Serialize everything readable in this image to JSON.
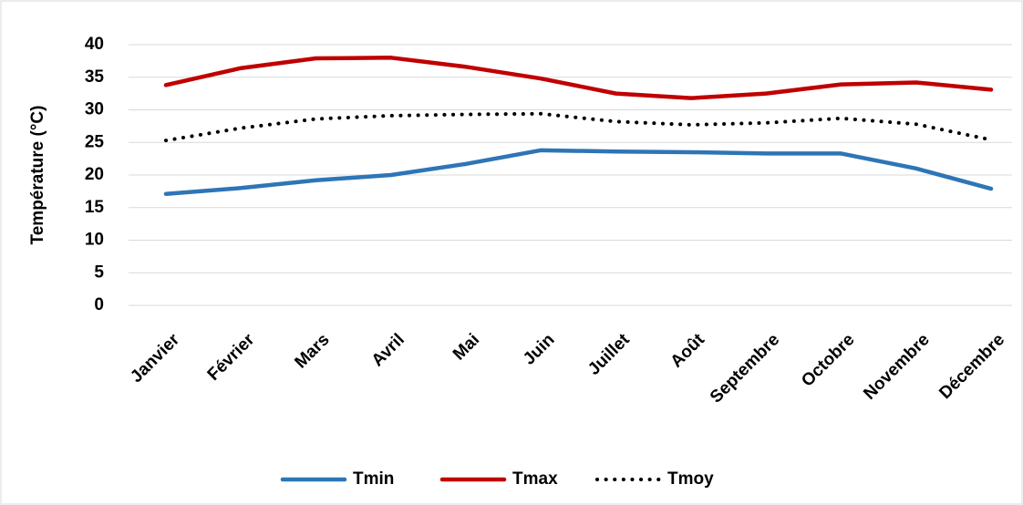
{
  "chart_data": {
    "type": "line",
    "y_label": "Température (°C)",
    "categories": [
      "Janvier",
      "Février",
      "Mars",
      "Avril",
      "Mai",
      "Juin",
      "Juillet",
      "Août",
      "Septembre",
      "Octobre",
      "Novembre",
      "Décembre"
    ],
    "series": [
      {
        "name": "Tmin",
        "color": "#2e75b6",
        "style": "solid",
        "values": [
          17.1,
          18.0,
          19.2,
          20.0,
          21.7,
          23.8,
          23.6,
          23.5,
          23.3,
          23.3,
          21.0,
          17.9
        ]
      },
      {
        "name": "Tmax",
        "color": "#c00000",
        "style": "solid",
        "values": [
          33.8,
          36.4,
          37.9,
          38.0,
          36.6,
          34.8,
          32.5,
          31.8,
          32.5,
          33.9,
          34.2,
          33.1
        ]
      },
      {
        "name": "Tmoy",
        "color": "#000000",
        "style": "dotted",
        "values": [
          25.3,
          27.2,
          28.6,
          29.1,
          29.3,
          29.4,
          28.2,
          27.7,
          28.0,
          28.7,
          27.8,
          25.4
        ]
      }
    ],
    "ylim": [
      0,
      40
    ],
    "yticks": [
      0,
      5,
      10,
      15,
      20,
      25,
      30,
      35,
      40
    ],
    "grid": true,
    "legend": "bottom"
  }
}
